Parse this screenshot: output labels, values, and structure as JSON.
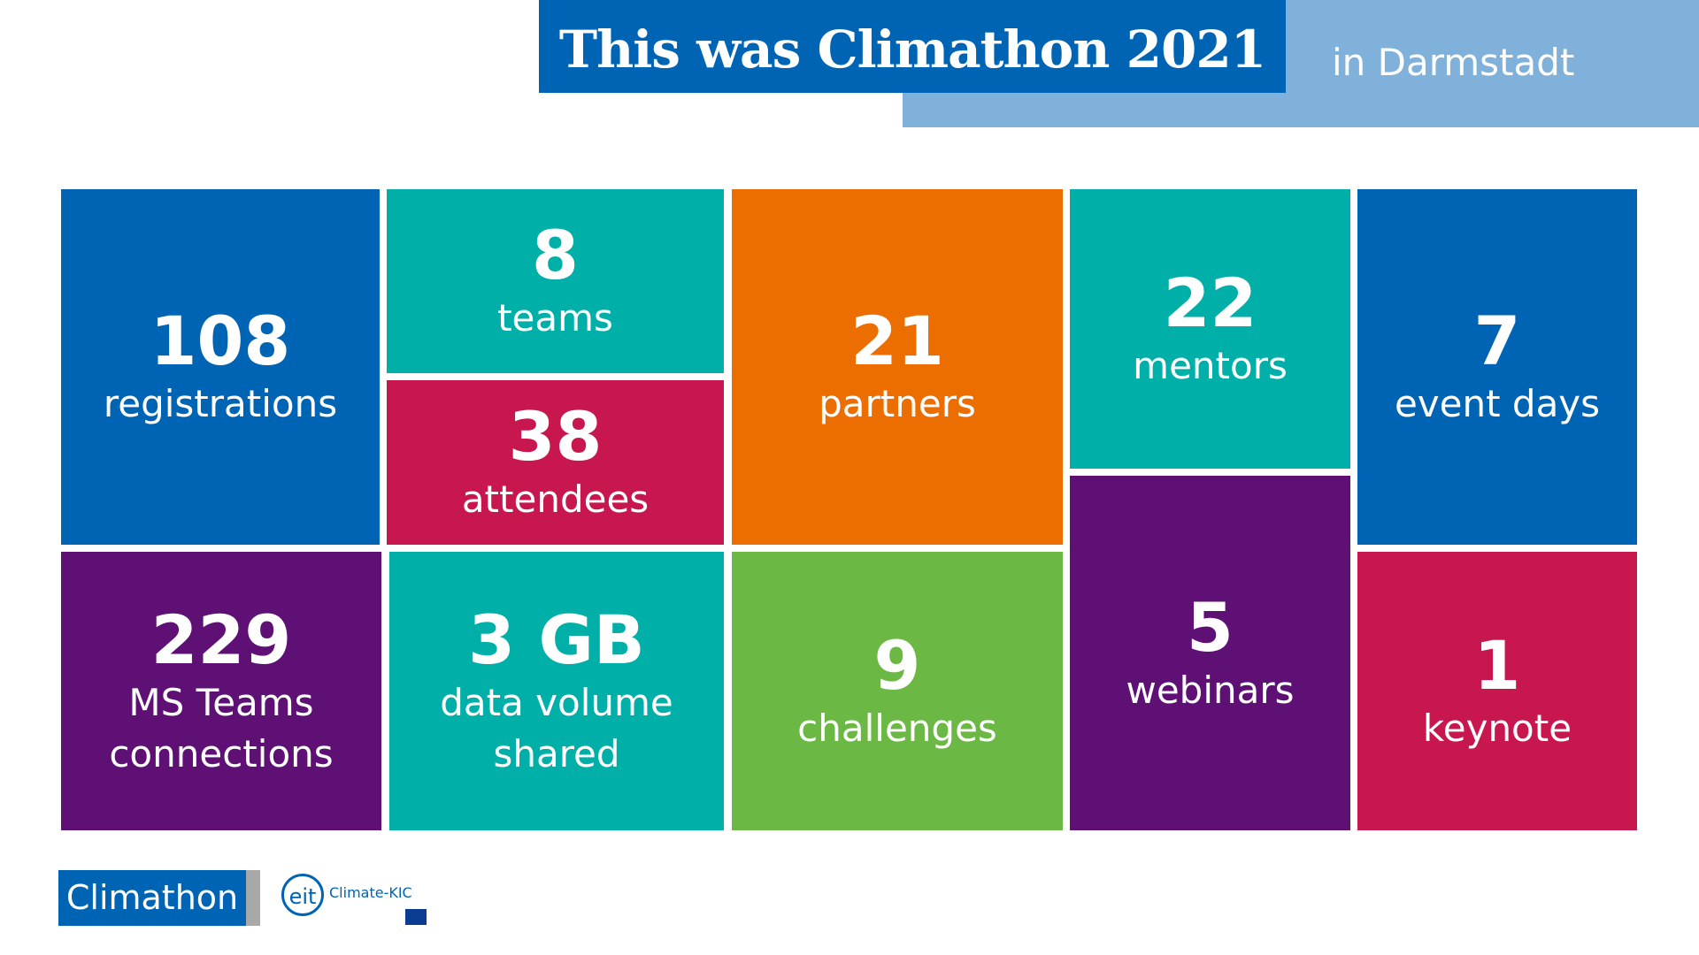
{
  "header": {
    "title": "This was Climathon 2021",
    "subtitle": "in Darmstadt"
  },
  "tiles": [
    {
      "value": "108",
      "label": [
        "registrations"
      ]
    },
    {
      "value": "8",
      "label": [
        "teams"
      ]
    },
    {
      "value": "38",
      "label": [
        "attendees"
      ]
    },
    {
      "value": "21",
      "label": [
        "partners"
      ]
    },
    {
      "value": "22",
      "label": [
        "mentors"
      ]
    },
    {
      "value": "7",
      "label": [
        "event days"
      ]
    },
    {
      "value": "229",
      "label": [
        "MS Teams",
        "connections"
      ]
    },
    {
      "value": "3 GB",
      "label": [
        "data volume",
        "shared"
      ]
    },
    {
      "value": "9",
      "label": [
        "challenges"
      ]
    },
    {
      "value": "5",
      "label": [
        "webinars"
      ]
    },
    {
      "value": "1",
      "label": [
        "keynote"
      ]
    }
  ],
  "footer": {
    "logo": "Climathon",
    "partner_mark": "eit",
    "partner": "Climate-KIC"
  }
}
